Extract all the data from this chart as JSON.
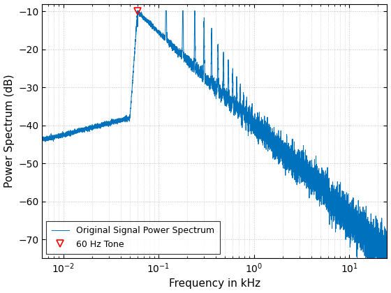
{
  "title": "",
  "xlabel": "Frequency in kHz",
  "ylabel": "Power Spectrum (dB)",
  "xlim": [
    0.006,
    25
  ],
  "ylim": [
    -75,
    -8
  ],
  "yticks": [
    -70,
    -60,
    -50,
    -40,
    -30,
    -20,
    -10
  ],
  "line_color": "#0072BD",
  "marker_color": "red",
  "marker_style": "v",
  "tone_freq_khz": 0.06,
  "tone_db": -10,
  "legend_labels": [
    "Original Signal Power Spectrum",
    "60 Hz Tone"
  ],
  "grid_color": "#c0c0c0",
  "seed": 42,
  "figsize": [
    5.6,
    4.2
  ],
  "dpi": 100
}
